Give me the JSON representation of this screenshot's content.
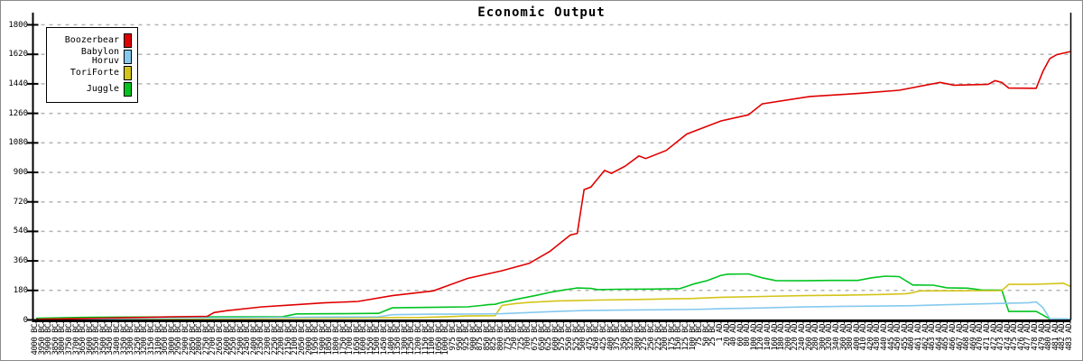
{
  "window_title": "Economic Output",
  "chart_data": {
    "type": "line",
    "title": "Economic Output",
    "xlabel": "",
    "ylabel": "",
    "ylim": [
      0,
      1800
    ],
    "yticks": [
      0,
      180,
      360,
      540,
      720,
      900,
      1080,
      1260,
      1440,
      1620,
      1800
    ],
    "grid": "horizontal-dashed",
    "legend_position": "top-left",
    "points_format": "keypoints [x_label_index, y_value]; x_label_index refers to x_labels array",
    "x_labels": [
      "4000 BC",
      "3950 BC",
      "3900 BC",
      "3850 BC",
      "3800 BC",
      "3750 BC",
      "3700 BC",
      "3650 BC",
      "3600 BC",
      "3550 BC",
      "3500 BC",
      "3450 BC",
      "3400 BC",
      "3350 BC",
      "3300 BC",
      "3250 BC",
      "3200 BC",
      "3150 BC",
      "3100 BC",
      "3050 BC",
      "3000 BC",
      "2950 BC",
      "2900 BC",
      "2850 BC",
      "2800 BC",
      "2750 BC",
      "2700 BC",
      "2650 BC",
      "2600 BC",
      "2550 BC",
      "2500 BC",
      "2450 BC",
      "2400 BC",
      "2350 BC",
      "2300 BC",
      "2250 BC",
      "2200 BC",
      "2150 BC",
      "2100 BC",
      "2050 BC",
      "2000 BC",
      "1950 BC",
      "1900 BC",
      "1850 BC",
      "1800 BC",
      "1750 BC",
      "1700 BC",
      "1650 BC",
      "1600 BC",
      "1550 BC",
      "1500 BC",
      "1450 BC",
      "1400 BC",
      "1350 BC",
      "1300 BC",
      "1250 BC",
      "1200 BC",
      "1150 BC",
      "1100 BC",
      "1050 BC",
      "1000 BC",
      "975 BC",
      "950 BC",
      "925 BC",
      "900 BC",
      "875 BC",
      "850 BC",
      "825 BC",
      "800 BC",
      "775 BC",
      "750 BC",
      "725 BC",
      "700 BC",
      "675 BC",
      "650 BC",
      "625 BC",
      "600 BC",
      "575 BC",
      "550 BC",
      "525 BC",
      "500 BC",
      "475 BC",
      "450 BC",
      "425 BC",
      "400 BC",
      "375 BC",
      "350 BC",
      "325 BC",
      "300 BC",
      "275 BC",
      "250 BC",
      "225 BC",
      "200 BC",
      "175 BC",
      "150 BC",
      "125 BC",
      "100 BC",
      "75 BC",
      "50 BC",
      "25 BC",
      "1 AD",
      "20 AD",
      "40 AD",
      "60 AD",
      "80 AD",
      "100 AD",
      "120 AD",
      "140 AD",
      "160 AD",
      "180 AD",
      "200 AD",
      "220 AD",
      "240 AD",
      "260 AD",
      "280 AD",
      "300 AD",
      "320 AD",
      "340 AD",
      "360 AD",
      "380 AD",
      "400 AD",
      "410 AD",
      "420 AD",
      "430 AD",
      "440 AD",
      "445 AD",
      "450 AD",
      "455 AD",
      "460 AD",
      "461 AD",
      "462 AD",
      "463 AD",
      "464 AD",
      "465 AD",
      "466 AD",
      "467 AD",
      "468 AD",
      "469 AD",
      "470 AD",
      "471 AD",
      "472 AD",
      "473 AD",
      "474 AD",
      "475 AD",
      "476 AD",
      "477 AD",
      "478 AD",
      "479 AD",
      "480 AD",
      "481 AD",
      "482 AD",
      "483 AD"
    ],
    "series": [
      {
        "name": "Boozerbear",
        "color": "#e00000",
        "points": [
          [
            0,
            4
          ],
          [
            5,
            7
          ],
          [
            10,
            11
          ],
          [
            15,
            15
          ],
          [
            20,
            19
          ],
          [
            25,
            22
          ],
          [
            26,
            45
          ],
          [
            28,
            57
          ],
          [
            33,
            80
          ],
          [
            37,
            90
          ],
          [
            42,
            104
          ],
          [
            47,
            113
          ],
          [
            52,
            148
          ],
          [
            58,
            177
          ],
          [
            63,
            253
          ],
          [
            68,
            300
          ],
          [
            72,
            345
          ],
          [
            75,
            418
          ],
          [
            78,
            518
          ],
          [
            79,
            528
          ],
          [
            80,
            795
          ],
          [
            81,
            810
          ],
          [
            83,
            912
          ],
          [
            84,
            894
          ],
          [
            86,
            938
          ],
          [
            88,
            1000
          ],
          [
            89,
            984
          ],
          [
            92,
            1034
          ],
          [
            95,
            1134
          ],
          [
            100,
            1214
          ],
          [
            104,
            1251
          ],
          [
            106,
            1318
          ],
          [
            113,
            1363
          ],
          [
            120,
            1381
          ],
          [
            126,
            1401
          ],
          [
            132,
            1449
          ],
          [
            134,
            1432
          ],
          [
            139,
            1437
          ],
          [
            140,
            1459
          ],
          [
            141,
            1448
          ],
          [
            142,
            1414
          ],
          [
            146,
            1413
          ],
          [
            147,
            1516
          ],
          [
            148,
            1594
          ],
          [
            149,
            1618
          ],
          [
            151,
            1637
          ]
        ]
      },
      {
        "name": "Babylon Horuv",
        "color": "#85c9ee",
        "points": [
          [
            0,
            3
          ],
          [
            10,
            7
          ],
          [
            20,
            11
          ],
          [
            30,
            14
          ],
          [
            40,
            17
          ],
          [
            50,
            19
          ],
          [
            52,
            32
          ],
          [
            58,
            35
          ],
          [
            63,
            36
          ],
          [
            68,
            38
          ],
          [
            72,
            45
          ],
          [
            76,
            52
          ],
          [
            80,
            57
          ],
          [
            86,
            60
          ],
          [
            92,
            62
          ],
          [
            97,
            65
          ],
          [
            100,
            68
          ],
          [
            106,
            73
          ],
          [
            112,
            79
          ],
          [
            118,
            83
          ],
          [
            124,
            85
          ],
          [
            128,
            87
          ],
          [
            132,
            92
          ],
          [
            136,
            96
          ],
          [
            140,
            100
          ],
          [
            143,
            103
          ],
          [
            145,
            105
          ],
          [
            146,
            110
          ],
          [
            147,
            75
          ],
          [
            148,
            8
          ],
          [
            151,
            6
          ]
        ]
      },
      {
        "name": "ToriForte",
        "color": "#d4c41a",
        "points": [
          [
            0,
            2
          ],
          [
            10,
            5
          ],
          [
            20,
            7
          ],
          [
            30,
            9
          ],
          [
            40,
            11
          ],
          [
            50,
            13
          ],
          [
            56,
            15
          ],
          [
            60,
            20
          ],
          [
            63,
            24
          ],
          [
            67,
            26
          ],
          [
            68,
            88
          ],
          [
            70,
            100
          ],
          [
            72,
            107
          ],
          [
            76,
            116
          ],
          [
            82,
            121
          ],
          [
            88,
            125
          ],
          [
            93,
            129
          ],
          [
            96,
            131
          ],
          [
            100,
            138
          ],
          [
            106,
            143
          ],
          [
            112,
            148
          ],
          [
            118,
            151
          ],
          [
            124,
            156
          ],
          [
            127,
            160
          ],
          [
            128,
            166
          ],
          [
            129,
            177
          ],
          [
            134,
            178
          ],
          [
            141,
            179
          ],
          [
            142,
            217
          ],
          [
            145,
            217
          ],
          [
            147,
            219
          ],
          [
            149,
            222
          ],
          [
            150,
            224
          ],
          [
            151,
            204
          ]
        ]
      },
      {
        "name": "Juggle",
        "color": "#00c420",
        "points": [
          [
            0,
            10
          ],
          [
            4,
            14
          ],
          [
            8,
            16
          ],
          [
            20,
            18
          ],
          [
            30,
            19
          ],
          [
            36,
            20
          ],
          [
            38,
            37
          ],
          [
            44,
            38
          ],
          [
            50,
            40
          ],
          [
            52,
            74
          ],
          [
            56,
            76
          ],
          [
            60,
            78
          ],
          [
            63,
            80
          ],
          [
            65,
            88
          ],
          [
            66,
            93
          ],
          [
            67,
            95
          ],
          [
            68,
            107
          ],
          [
            70,
            125
          ],
          [
            73,
            150
          ],
          [
            75,
            168
          ],
          [
            77,
            183
          ],
          [
            79,
            195
          ],
          [
            81,
            192
          ],
          [
            82,
            185
          ],
          [
            85,
            187
          ],
          [
            90,
            188
          ],
          [
            94,
            191
          ],
          [
            96,
            219
          ],
          [
            98,
            240
          ],
          [
            100,
            272
          ],
          [
            101,
            279
          ],
          [
            104,
            281
          ],
          [
            106,
            257
          ],
          [
            108,
            240
          ],
          [
            112,
            239
          ],
          [
            116,
            241
          ],
          [
            120,
            241
          ],
          [
            122,
            257
          ],
          [
            124,
            267
          ],
          [
            126,
            264
          ],
          [
            128,
            213
          ],
          [
            131,
            212
          ],
          [
            133,
            196
          ],
          [
            136,
            194
          ],
          [
            138,
            183
          ],
          [
            141,
            181
          ],
          [
            142,
            52
          ],
          [
            146,
            52
          ],
          [
            147,
            30
          ],
          [
            148,
            5
          ]
        ]
      }
    ]
  }
}
